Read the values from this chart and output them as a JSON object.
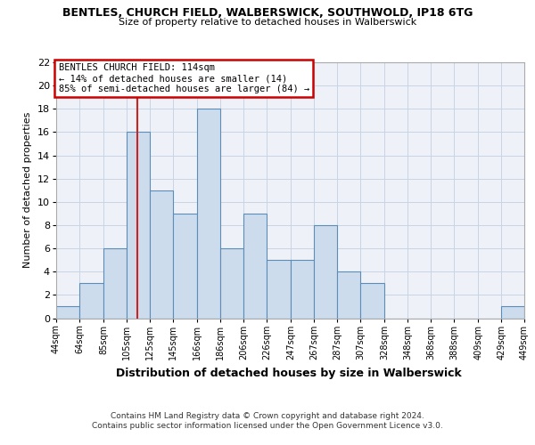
{
  "title": "BENTLES, CHURCH FIELD, WALBERSWICK, SOUTHWOLD, IP18 6TG",
  "subtitle": "Size of property relative to detached houses in Walberswick",
  "xlabel": "Distribution of detached houses by size in Walberswick",
  "ylabel": "Number of detached properties",
  "footer_line1": "Contains HM Land Registry data © Crown copyright and database right 2024.",
  "footer_line2": "Contains public sector information licensed under the Open Government Licence v3.0.",
  "annotation_title": "BENTLES CHURCH FIELD: 114sqm",
  "annotation_line1": "← 14% of detached houses are smaller (14)",
  "annotation_line2": "85% of semi-detached houses are larger (84) →",
  "property_line_x": 114,
  "bin_edges": [
    44,
    64,
    85,
    105,
    125,
    145,
    166,
    186,
    206,
    226,
    247,
    267,
    287,
    307,
    328,
    348,
    368,
    388,
    409,
    429,
    449
  ],
  "bar_values": [
    1,
    3,
    6,
    16,
    11,
    9,
    18,
    6,
    9,
    5,
    5,
    8,
    4,
    3,
    0,
    0,
    0,
    0,
    0,
    1
  ],
  "bar_color": "#ccdcec",
  "bar_edge_color": "#5b8db8",
  "grid_color": "#c8d4e4",
  "vline_color": "#cc2222",
  "ylim": [
    0,
    22
  ],
  "yticks": [
    0,
    2,
    4,
    6,
    8,
    10,
    12,
    14,
    16,
    18,
    20,
    22
  ],
  "bg_color": "#eef2f8",
  "title_fontsize": 9,
  "subtitle_fontsize": 8,
  "ylabel_fontsize": 8,
  "xlabel_fontsize": 9,
  "tick_fontsize": 7,
  "footer_fontsize": 6.5,
  "ann_fontsize": 7.5
}
